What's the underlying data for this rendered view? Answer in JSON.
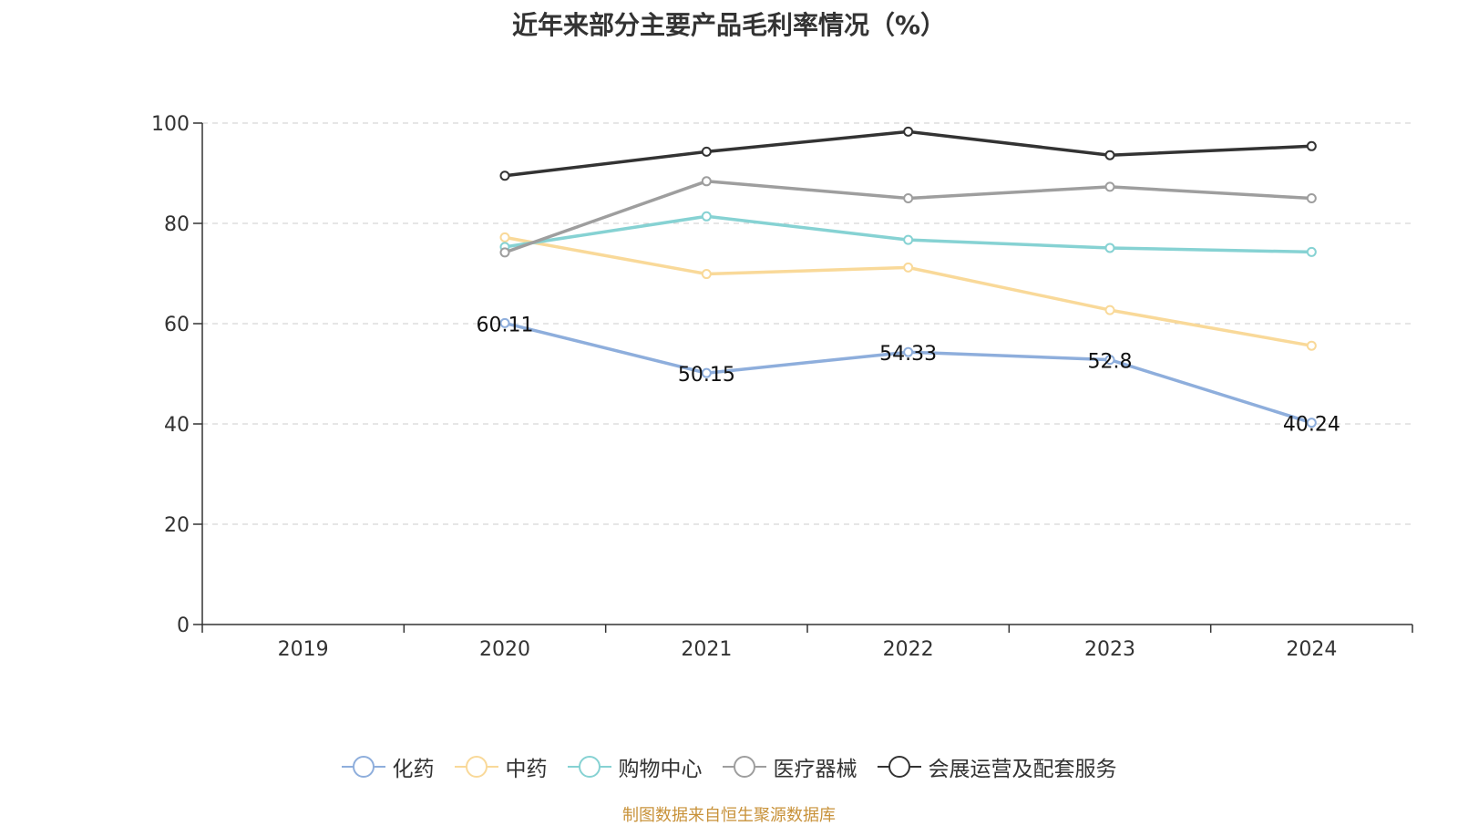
{
  "title": "近年来部分主要产品毛利率情况（%）",
  "source": "制图数据来自恒生聚源数据库",
  "chart_data": {
    "type": "line",
    "title": "近年来部分主要产品毛利率情况（%）",
    "categories": [
      "2019",
      "2020",
      "2021",
      "2022",
      "2023",
      "2024"
    ],
    "ylim": [
      0,
      100
    ],
    "yticks": [
      0,
      20,
      40,
      60,
      80,
      100
    ],
    "grid": true,
    "legend_position": "bottom",
    "series": [
      {
        "name": "化药",
        "color": "#8eaedc",
        "values": [
          null,
          60.11,
          50.15,
          54.33,
          52.8,
          40.24
        ],
        "labels": [
          null,
          "60.11",
          "50.15",
          "54.33",
          "52.8",
          "40.24"
        ]
      },
      {
        "name": "中药",
        "color": "#f9d999",
        "values": [
          null,
          77.2,
          69.9,
          71.2,
          62.7,
          55.6
        ]
      },
      {
        "name": "购物中心",
        "color": "#86d2d3",
        "values": [
          null,
          75.3,
          81.4,
          76.7,
          75.1,
          74.3
        ]
      },
      {
        "name": "医疗器械",
        "color": "#9e9e9e",
        "values": [
          null,
          74.2,
          88.4,
          85.0,
          87.3,
          85.0
        ]
      },
      {
        "name": "会展运营及配套服务",
        "color": "#333333",
        "values": [
          null,
          89.5,
          94.3,
          98.3,
          93.6,
          95.4
        ]
      }
    ]
  }
}
